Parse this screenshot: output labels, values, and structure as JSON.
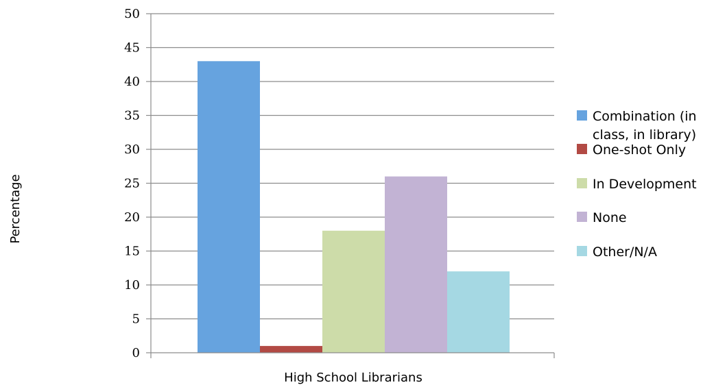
{
  "chart_data": {
    "type": "bar",
    "title": "",
    "xlabel": "High School Librarians",
    "ylabel": "Percentage",
    "ylim": [
      0,
      50
    ],
    "yticks": [
      0,
      5,
      10,
      15,
      20,
      25,
      30,
      35,
      40,
      45,
      50
    ],
    "grid": true,
    "legend_position": "right",
    "categories": [
      "High School Librarians"
    ],
    "series": [
      {
        "name": "Combination (in class, in library)",
        "legend_lines": [
          "Combination (in",
          "class, in library)"
        ],
        "values": [
          43
        ],
        "color": "#66A3DF"
      },
      {
        "name": "One-shot Only",
        "legend_lines": [
          "One-shot Only"
        ],
        "values": [
          1
        ],
        "color": "#B24A44"
      },
      {
        "name": "In Development",
        "legend_lines": [
          "In Development"
        ],
        "values": [
          18
        ],
        "color": "#CDDCA9"
      },
      {
        "name": "None",
        "legend_lines": [
          "None"
        ],
        "values": [
          26
        ],
        "color": "#C2B3D4"
      },
      {
        "name": "Other/N/A",
        "legend_lines": [
          "Other/N/A"
        ],
        "values": [
          12
        ],
        "color": "#A5D8E3"
      }
    ]
  }
}
